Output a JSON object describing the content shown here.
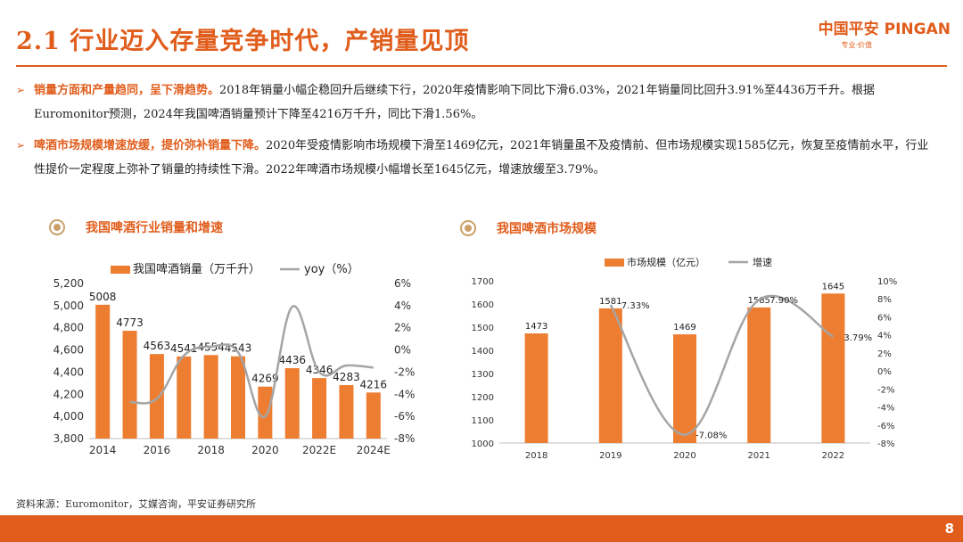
{
  "header": {
    "title": "2.1 行业迈入存量竞争时代，产销量见顶",
    "logo_cn": "中国平安",
    "logo_en": "PINGAN",
    "logo_slogan": "专业·价值"
  },
  "bullets": [
    {
      "highlight": "销量方面和产量趋同，呈下滑趋势。",
      "text": "2018年销量小幅企稳回升后继续下行，2020年疫情影响下同比下滑6.03%，2021年销量同比回升3.91%至4436万千升。根据Euromonitor预测，2024年我国啤酒销量预计下降至4216万千升，同比下滑1.56%。"
    },
    {
      "highlight": "啤酒市场规模增速放缓，提价弥补销量下降。",
      "text": "2020年受疫情影响市场规模下滑至1469亿元，2021年销量虽不及疫情前、但市场规模实现1585亿元，恢复至疫情前水平，行业性提价一定程度上弥补了销量的持续性下滑。2022年啤酒市场规模小幅增长至1645亿元，增速放缓至3.79%。"
    }
  ],
  "chart_titles": {
    "left": "我国啤酒行业销量和增速",
    "right": "我国啤酒市场规模"
  },
  "source": "资料来源：Euromonitor，艾媒咨询，平安证券研究所",
  "page_number": "8",
  "colors": {
    "accent": "#e05d1c",
    "bar": "#ed7d31",
    "line": "#a5a5a5"
  },
  "chart_data": [
    {
      "type": "bar",
      "categories": [
        "2014",
        "2015",
        "2016",
        "2017",
        "2018",
        "2019",
        "2020",
        "2021",
        "2022E",
        "2023E",
        "2024E"
      ],
      "x_tick_labels": [
        "2014",
        "",
        "2016",
        "",
        "2018",
        "",
        "2020",
        "",
        "2022E",
        "",
        "2024E"
      ],
      "series": [
        {
          "name": "我国啤酒销量（万千升）",
          "kind": "bar",
          "axis": "left",
          "values": [
            5008,
            4773,
            4563,
            4541,
            4554,
            4543,
            4269,
            4436,
            4346,
            4283,
            4216
          ]
        },
        {
          "name": "yoy（%）",
          "kind": "line",
          "axis": "right",
          "values": [
            null,
            -4.7,
            -4.4,
            -0.5,
            0.3,
            -0.2,
            -6.0,
            3.9,
            -2.0,
            -1.4,
            -1.6
          ]
        }
      ],
      "y_left": {
        "min": 3800,
        "max": 5200,
        "step": 200,
        "ticks": [
          "3,800",
          "4,000",
          "4,200",
          "4,400",
          "4,600",
          "4,800",
          "5,000",
          "5,200"
        ]
      },
      "y_right": {
        "min": -8,
        "max": 6,
        "step": 2,
        "ticks": [
          "-8%",
          "-6%",
          "-4%",
          "-2%",
          "0%",
          "2%",
          "4%",
          "6%"
        ]
      },
      "legend": "top"
    },
    {
      "type": "bar",
      "categories": [
        "2018",
        "2019",
        "2020",
        "2021",
        "2022"
      ],
      "series": [
        {
          "name": "市场规模（亿元）",
          "kind": "bar",
          "axis": "left",
          "values": [
            1473,
            1581,
            1469,
            1585,
            1645
          ]
        },
        {
          "name": "增速",
          "kind": "line",
          "axis": "right",
          "values": [
            null,
            7.33,
            -7.08,
            7.9,
            3.79
          ],
          "labels": [
            "",
            "7.33%",
            "-7.08%",
            "7.90%",
            "3.79%"
          ]
        }
      ],
      "y_left": {
        "min": 1000,
        "max": 1700,
        "step": 100,
        "ticks": [
          "1000",
          "1100",
          "1200",
          "1300",
          "1400",
          "1500",
          "1600",
          "1700"
        ]
      },
      "y_right": {
        "min": -8,
        "max": 10,
        "step": 2,
        "ticks": [
          "-8%",
          "-6%",
          "-4%",
          "-2%",
          "0%",
          "2%",
          "4%",
          "6%",
          "8%",
          "10%"
        ]
      },
      "legend": "top"
    }
  ]
}
